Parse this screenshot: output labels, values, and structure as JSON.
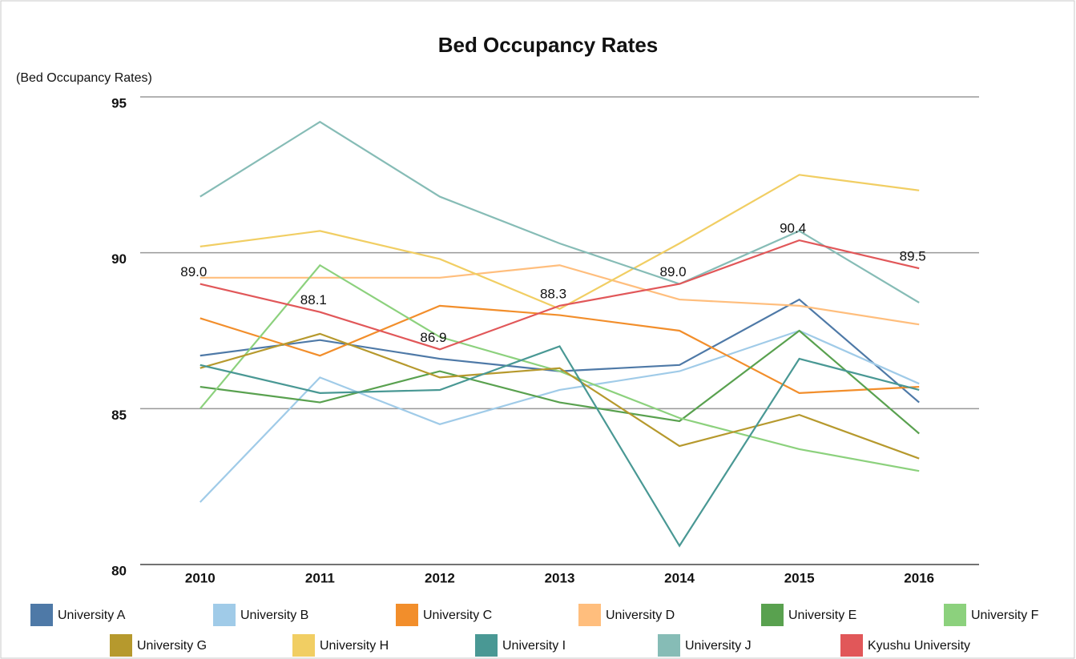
{
  "chart_data": {
    "type": "line",
    "title": "Bed Occupancy Rates",
    "y_label": "(Bed Occupancy Rates)",
    "categories": [
      "2010",
      "2011",
      "2012",
      "2013",
      "2014",
      "2015",
      "2016"
    ],
    "ylim": [
      80,
      95
    ],
    "yticks": [
      80,
      85,
      90,
      95
    ],
    "grid": true,
    "series": [
      {
        "name": "University A",
        "color": "#4e79a7",
        "values": [
          86.7,
          87.2,
          86.6,
          86.2,
          86.4,
          88.5,
          85.2
        ]
      },
      {
        "name": "University B",
        "color": "#a0cbe8",
        "values": [
          82.0,
          86.0,
          84.5,
          85.6,
          86.2,
          87.5,
          85.8
        ]
      },
      {
        "name": "University C",
        "color": "#f28e2b",
        "values": [
          87.9,
          86.7,
          88.3,
          88.0,
          87.5,
          85.5,
          85.7
        ]
      },
      {
        "name": "University D",
        "color": "#ffbe7d",
        "values": [
          89.2,
          89.2,
          89.2,
          89.6,
          88.5,
          88.3,
          87.7
        ]
      },
      {
        "name": "University E",
        "color": "#59a14f",
        "values": [
          85.7,
          85.2,
          86.2,
          85.2,
          84.6,
          87.5,
          84.2
        ]
      },
      {
        "name": "University F",
        "color": "#8cd17d",
        "values": [
          85.0,
          89.6,
          87.3,
          86.2,
          84.7,
          83.7,
          83.0
        ]
      },
      {
        "name": "University G",
        "color": "#b6992d",
        "values": [
          86.3,
          87.4,
          86.0,
          86.3,
          83.8,
          84.8,
          83.4
        ]
      },
      {
        "name": "University H",
        "color": "#f1ce63",
        "values": [
          90.2,
          90.7,
          89.8,
          88.2,
          90.3,
          92.5,
          92.0
        ]
      },
      {
        "name": "University I",
        "color": "#499894",
        "values": [
          86.4,
          85.5,
          85.6,
          87.0,
          80.6,
          86.6,
          85.6
        ]
      },
      {
        "name": "University J",
        "color": "#86bcb6",
        "values": [
          91.8,
          94.2,
          91.8,
          90.3,
          89.0,
          90.7,
          88.4
        ]
      },
      {
        "name": "Kyushu University",
        "color": "#e15759",
        "values": [
          89.0,
          88.1,
          86.9,
          88.3,
          89.0,
          90.4,
          89.5
        ],
        "value_labels": [
          "89.0",
          "88.1",
          "86.9",
          "88.3",
          "89.0",
          "90.4",
          "89.5"
        ]
      }
    ]
  }
}
